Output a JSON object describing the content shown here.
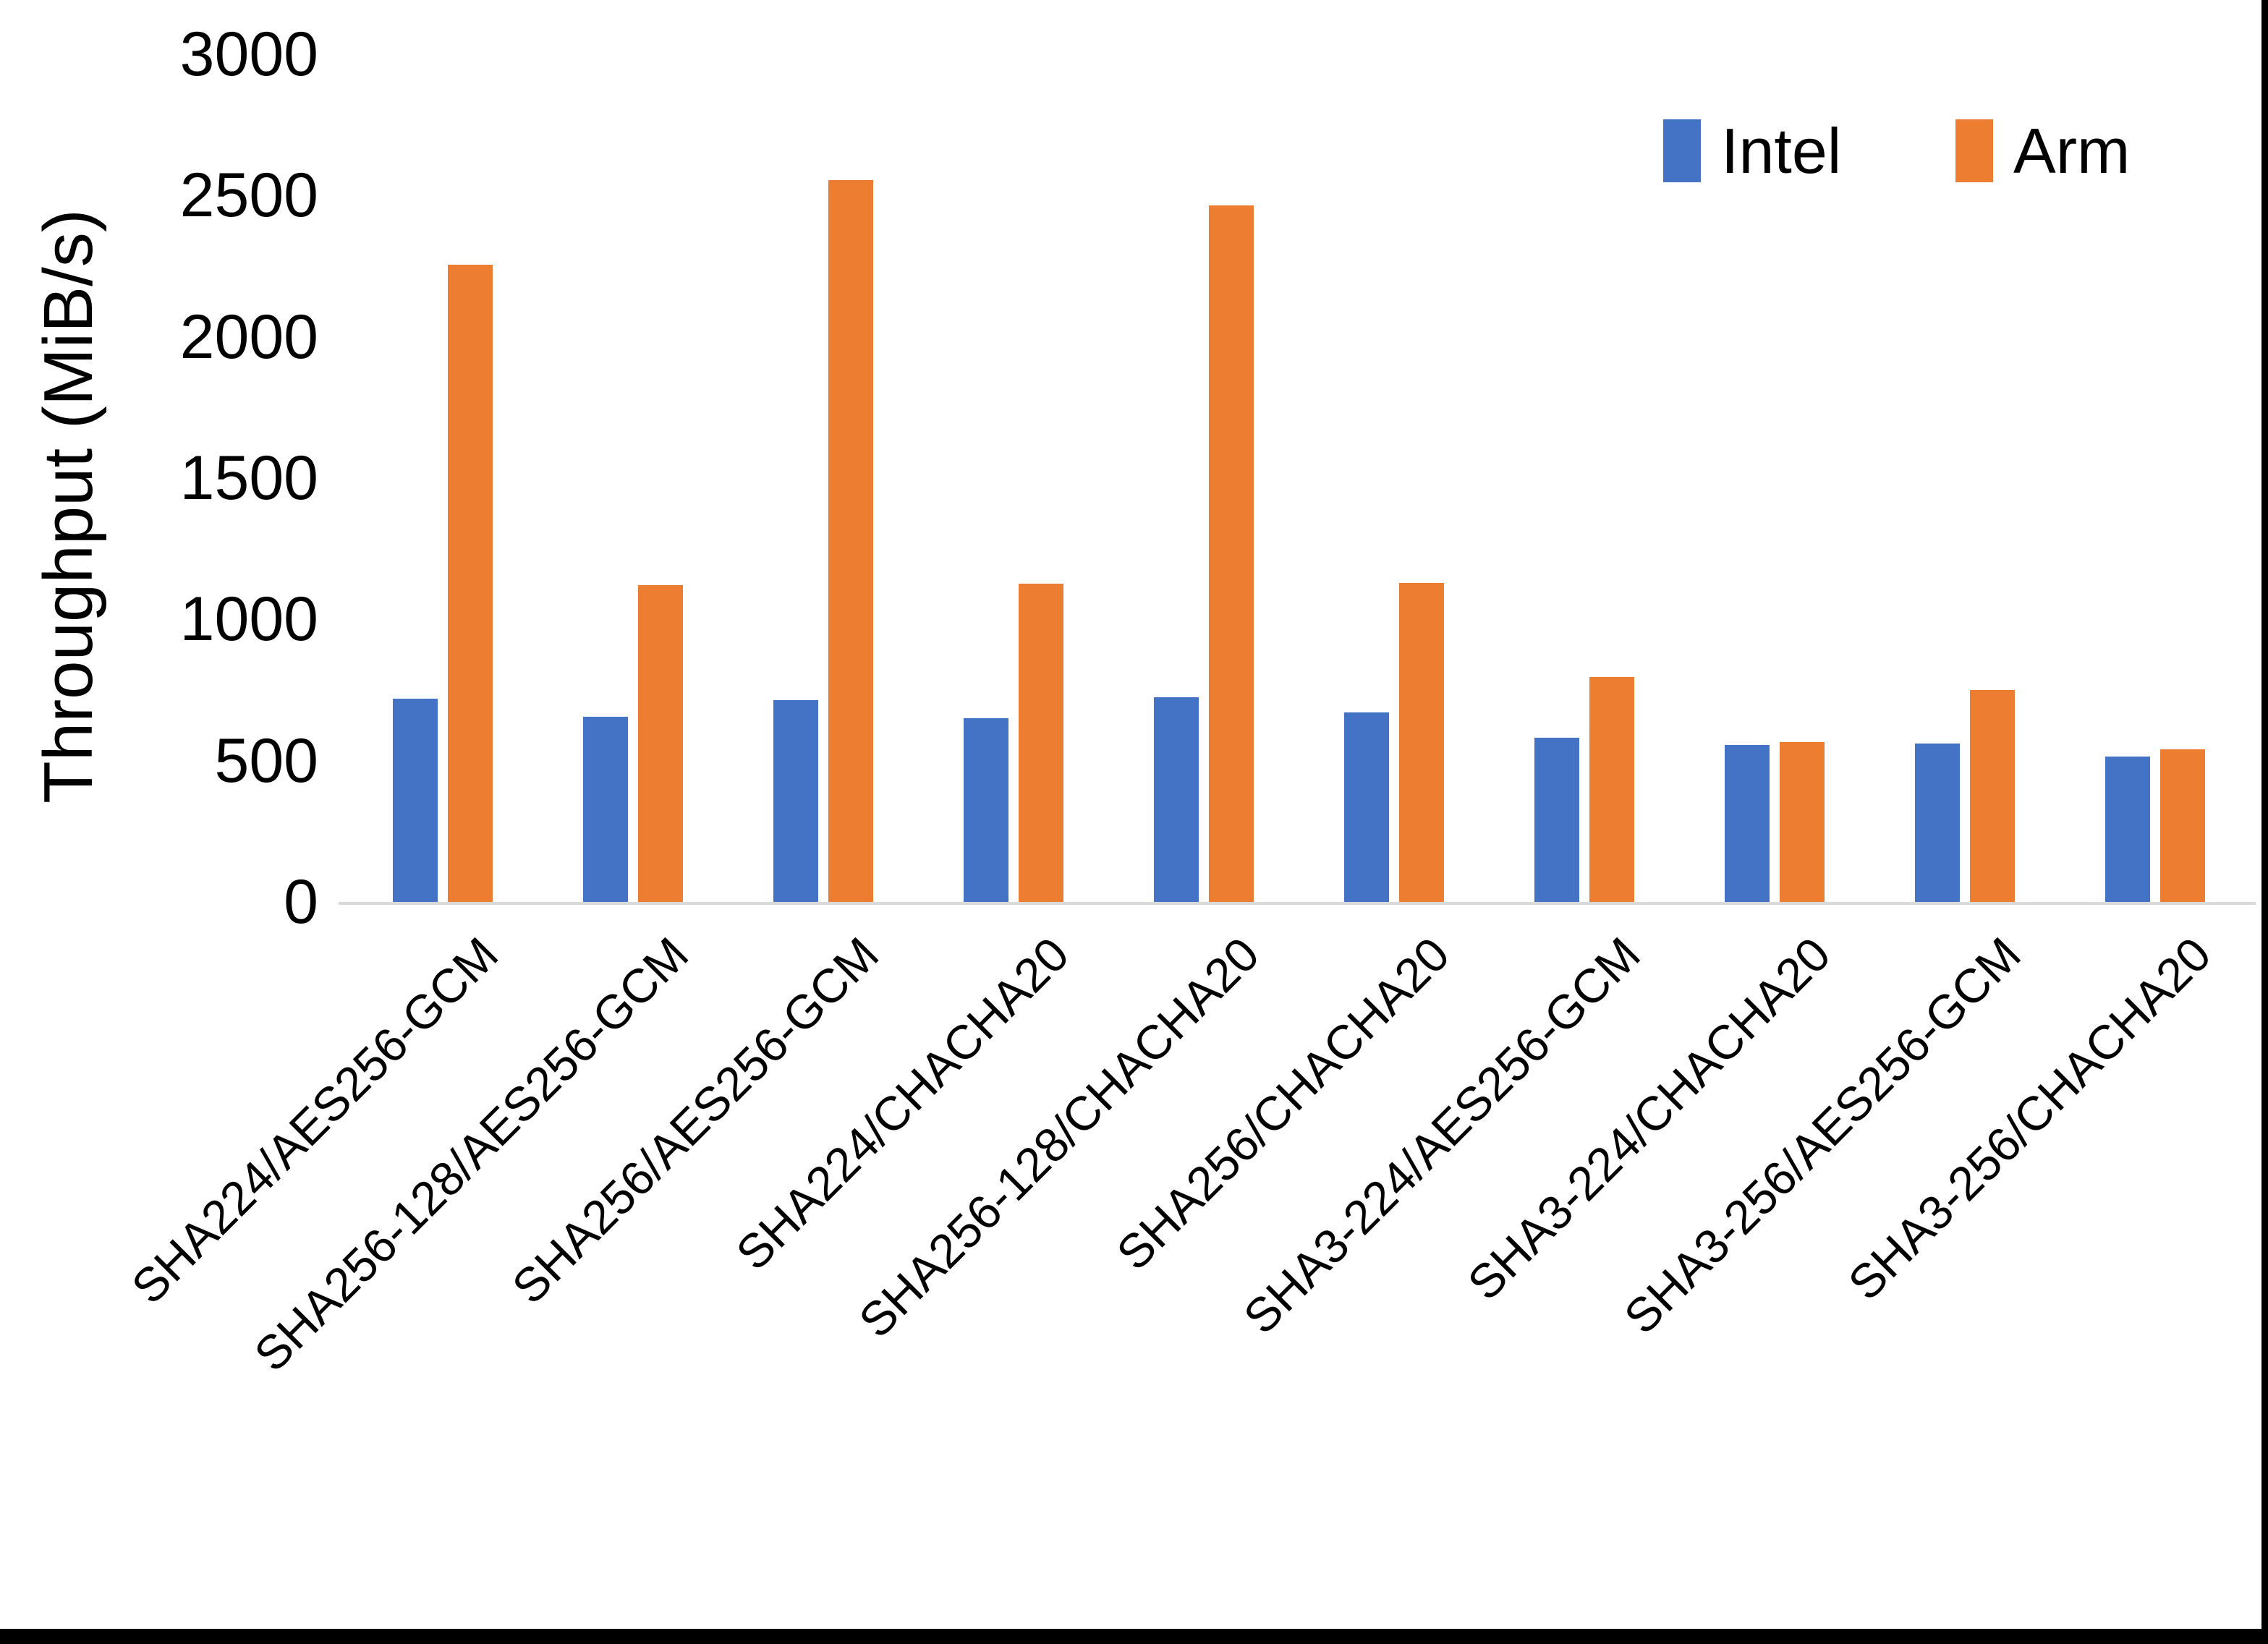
{
  "chart_data": {
    "type": "bar",
    "title": "",
    "xlabel": "",
    "ylabel": "Throughput (MiB/s)",
    "ylim": [
      0,
      3000
    ],
    "yticks": [
      3000,
      2500,
      2000,
      1500,
      1000,
      500,
      0
    ],
    "grid": false,
    "legend_position": "top-right",
    "categories": [
      "SHA224/AES256-GCM",
      "SHA256-128/AES256-GCM",
      "SHA256/AES256-GCM",
      "SHA224/CHACHA20",
      "SHA256-128/CHACHA20",
      "SHA256/CHACHA20",
      "SHA3-224/AES256-GCM",
      "SHA3-224/CHACHA20",
      "SHA3-256/AES256-GCM",
      "SHA3-256/CHACHA20"
    ],
    "series": [
      {
        "name": "Intel",
        "color": "#4472C4",
        "values": [
          720,
          655,
          715,
          650,
          725,
          670,
          580,
          555,
          560,
          515
        ]
      },
      {
        "name": "Arm",
        "color": "#ED7D31",
        "values": [
          2255,
          1120,
          2555,
          1125,
          2465,
          1130,
          795,
          565,
          750,
          540
        ]
      }
    ]
  },
  "style": {
    "axis_line_color": "#d9d9d9",
    "text_color": "#000000",
    "background": "#ffffff",
    "frame_color": "#000000"
  }
}
